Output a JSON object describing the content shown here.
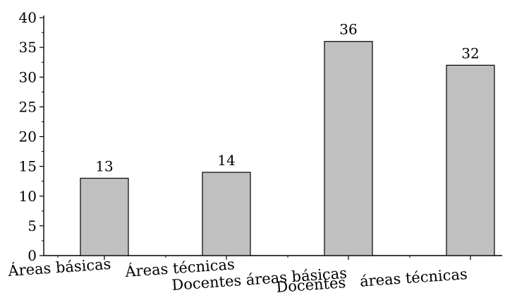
{
  "chart_data": {
    "type": "bar",
    "title": "",
    "xlabel": "",
    "ylabel": "",
    "categories": [
      "Áreas básicas",
      "Áreas técnicas",
      "Docentes áreas básicas",
      "Docentes   áreas técnicas"
    ],
    "values": [
      13,
      14,
      36,
      32
    ],
    "data_labels": [
      "13",
      "14",
      "36",
      "32"
    ],
    "ylim": [
      0,
      40
    ],
    "yticks": [
      0,
      5,
      10,
      15,
      20,
      25,
      30,
      35,
      40
    ],
    "ytick_labels": [
      "0",
      "5",
      "10",
      "15",
      "20",
      "25",
      "30",
      "35",
      "40"
    ],
    "grid": false,
    "legend": "none",
    "bar_color": "#c0c0c0",
    "edge_color": "#000000"
  }
}
